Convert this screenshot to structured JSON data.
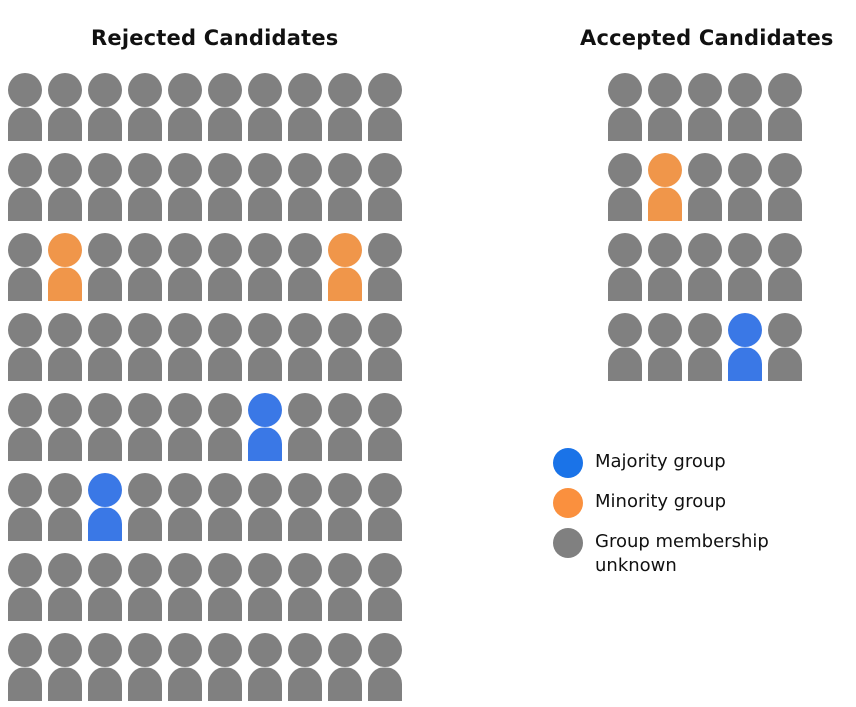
{
  "colors": {
    "majority": "#3a78e6",
    "minority": "#f0964a",
    "unknown": "#808080",
    "legend_majority": "#1a73e8",
    "legend_minority": "#fa903e"
  },
  "rejected": {
    "title": "Rejected Candidates",
    "rows": [
      [
        "u",
        "u",
        "u",
        "u",
        "u",
        "u",
        "u",
        "u",
        "u",
        "u"
      ],
      [
        "u",
        "u",
        "u",
        "u",
        "u",
        "u",
        "u",
        "u",
        "u",
        "u"
      ],
      [
        "u",
        "n",
        "u",
        "u",
        "u",
        "u",
        "u",
        "u",
        "n",
        "u"
      ],
      [
        "u",
        "u",
        "u",
        "u",
        "u",
        "u",
        "u",
        "u",
        "u",
        "u"
      ],
      [
        "u",
        "u",
        "u",
        "u",
        "u",
        "u",
        "m",
        "u",
        "u",
        "u"
      ],
      [
        "u",
        "u",
        "m",
        "u",
        "u",
        "u",
        "u",
        "u",
        "u",
        "u"
      ],
      [
        "u",
        "u",
        "u",
        "u",
        "u",
        "u",
        "u",
        "u",
        "u",
        "u"
      ],
      [
        "u",
        "u",
        "u",
        "u",
        "u",
        "u",
        "u",
        "u",
        "u",
        "u"
      ]
    ]
  },
  "accepted": {
    "title": "Accepted Candidates",
    "rows": [
      [
        "u",
        "u",
        "u",
        "u",
        "u"
      ],
      [
        "u",
        "n",
        "u",
        "u",
        "u"
      ],
      [
        "u",
        "u",
        "u",
        "u",
        "u"
      ],
      [
        "u",
        "u",
        "u",
        "m",
        "u"
      ]
    ]
  },
  "legend": {
    "items": [
      {
        "key": "m",
        "label": "Majority group"
      },
      {
        "key": "n",
        "label": "Minority group"
      },
      {
        "key": "u",
        "label": "Group membership unknown"
      }
    ]
  }
}
